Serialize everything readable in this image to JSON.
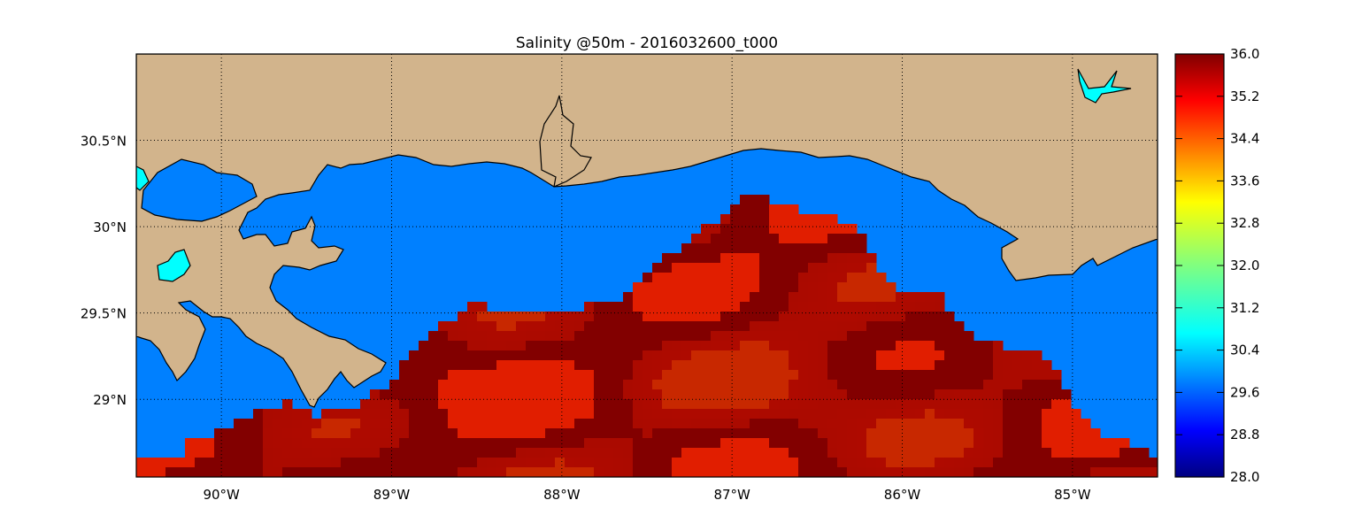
{
  "title": "Salinity @50m - 2016032600_t000",
  "map": {
    "lon_range": [
      -90.5,
      -84.5
    ],
    "lat_range": [
      28.55,
      31.0
    ],
    "gridlines": true,
    "x_ticks": [
      {
        "lon": -90,
        "label": "90°W"
      },
      {
        "lon": -89,
        "label": "89°W"
      },
      {
        "lon": -88,
        "label": "88°W"
      },
      {
        "lon": -87,
        "label": "87°W"
      },
      {
        "lon": -86,
        "label": "86°W"
      },
      {
        "lon": -85,
        "label": "85°W"
      }
    ],
    "y_ticks": [
      {
        "lat": 30.5,
        "label": "30.5°N"
      },
      {
        "lat": 30.0,
        "label": "30°N"
      },
      {
        "lat": 29.5,
        "label": "29.5°N"
      },
      {
        "lat": 29.0,
        "label": "29°N"
      }
    ],
    "colors": {
      "land": "#D2B48C",
      "water_mask": "#0080FF",
      "lakes": "#00FFFF",
      "frame": "#000000"
    }
  },
  "colorbar": {
    "colormap": "jet",
    "min": 28.0,
    "max": 36.0,
    "tick_labels": [
      "36.0",
      "35.2",
      "34.4",
      "33.6",
      "32.8",
      "32.0",
      "31.2",
      "30.4",
      "29.6",
      "28.8",
      "28.0"
    ]
  }
}
